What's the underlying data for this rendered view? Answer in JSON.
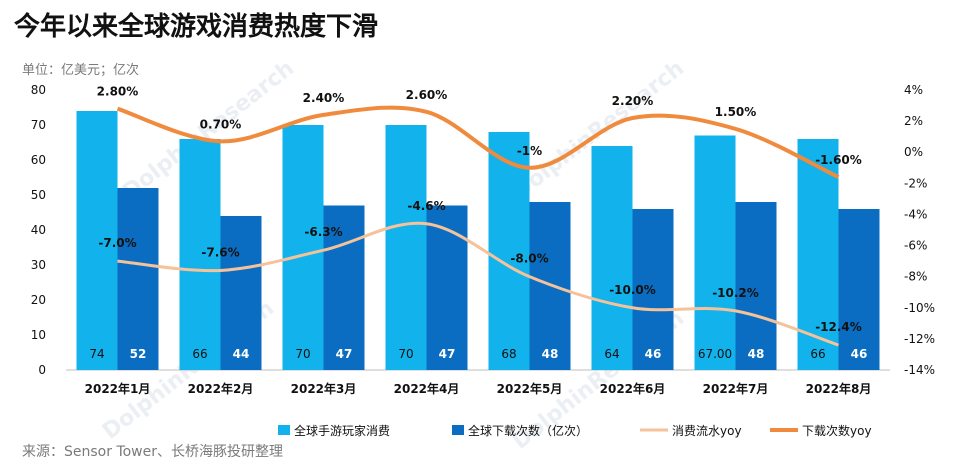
{
  "header": {
    "title": "今年以来全球游戏消费热度下滑",
    "unit": "单位：亿美元；亿次"
  },
  "footer": {
    "source": "来源：Sensor Tower、长桥海豚投研整理"
  },
  "colors": {
    "bar1": "#12b3ec",
    "bar2": "#0a6dc1",
    "line1": "#f6c29a",
    "line2": "#f08a3c"
  },
  "chart_data": {
    "type": "bar",
    "categories": [
      "2022年1月",
      "2022年2月",
      "2022年3月",
      "2022年4月",
      "2022年5月",
      "2022年6月",
      "2022年7月",
      "2022年8月"
    ],
    "ylim": [
      0,
      80
    ],
    "yticks": [
      0,
      10,
      20,
      30,
      40,
      50,
      60,
      70,
      80
    ],
    "y2lim": [
      -14,
      4
    ],
    "y2ticks": [
      "4%",
      "2%",
      "0%",
      "-2%",
      "-4%",
      "-6%",
      "-8%",
      "-10%",
      "-12%",
      "-14%"
    ],
    "y2tick_values": [
      4,
      2,
      0,
      -2,
      -4,
      -6,
      -8,
      -10,
      -12,
      -14
    ],
    "series": [
      {
        "name": "全球手游玩家消费",
        "kind": "bar",
        "axis": "left",
        "values": [
          74,
          66,
          70,
          70,
          68,
          64,
          67,
          66
        ],
        "labels": [
          "74",
          "66",
          "70",
          "70",
          "68",
          "64",
          "67.00",
          "66"
        ]
      },
      {
        "name": "全球下载次数（亿次）",
        "kind": "bar",
        "axis": "left",
        "values": [
          52,
          44,
          47,
          47,
          48,
          46,
          48,
          46
        ],
        "labels": [
          "52",
          "44",
          "47",
          "47",
          "48",
          "46",
          "48",
          "46"
        ]
      },
      {
        "name": "消费流水yoy",
        "kind": "line",
        "axis": "right",
        "values": [
          -7.0,
          -7.6,
          -6.3,
          -4.6,
          -8.0,
          -10.0,
          -10.2,
          -12.4
        ],
        "labels": [
          "-7.0%",
          "-7.6%",
          "-6.3%",
          "-4.6%",
          "-8.0%",
          "-10.0%",
          "-10.2%",
          "-12.4%"
        ]
      },
      {
        "name": "下载次数yoy",
        "kind": "line",
        "axis": "right",
        "values": [
          2.8,
          0.7,
          2.4,
          2.6,
          -1.0,
          2.2,
          1.5,
          -1.6
        ],
        "labels": [
          "2.80%",
          "0.70%",
          "2.40%",
          "2.60%",
          "-1%",
          "2.20%",
          "1.50%",
          "-1.60%"
        ]
      }
    ],
    "legend_position": "bottom",
    "grid": false
  }
}
